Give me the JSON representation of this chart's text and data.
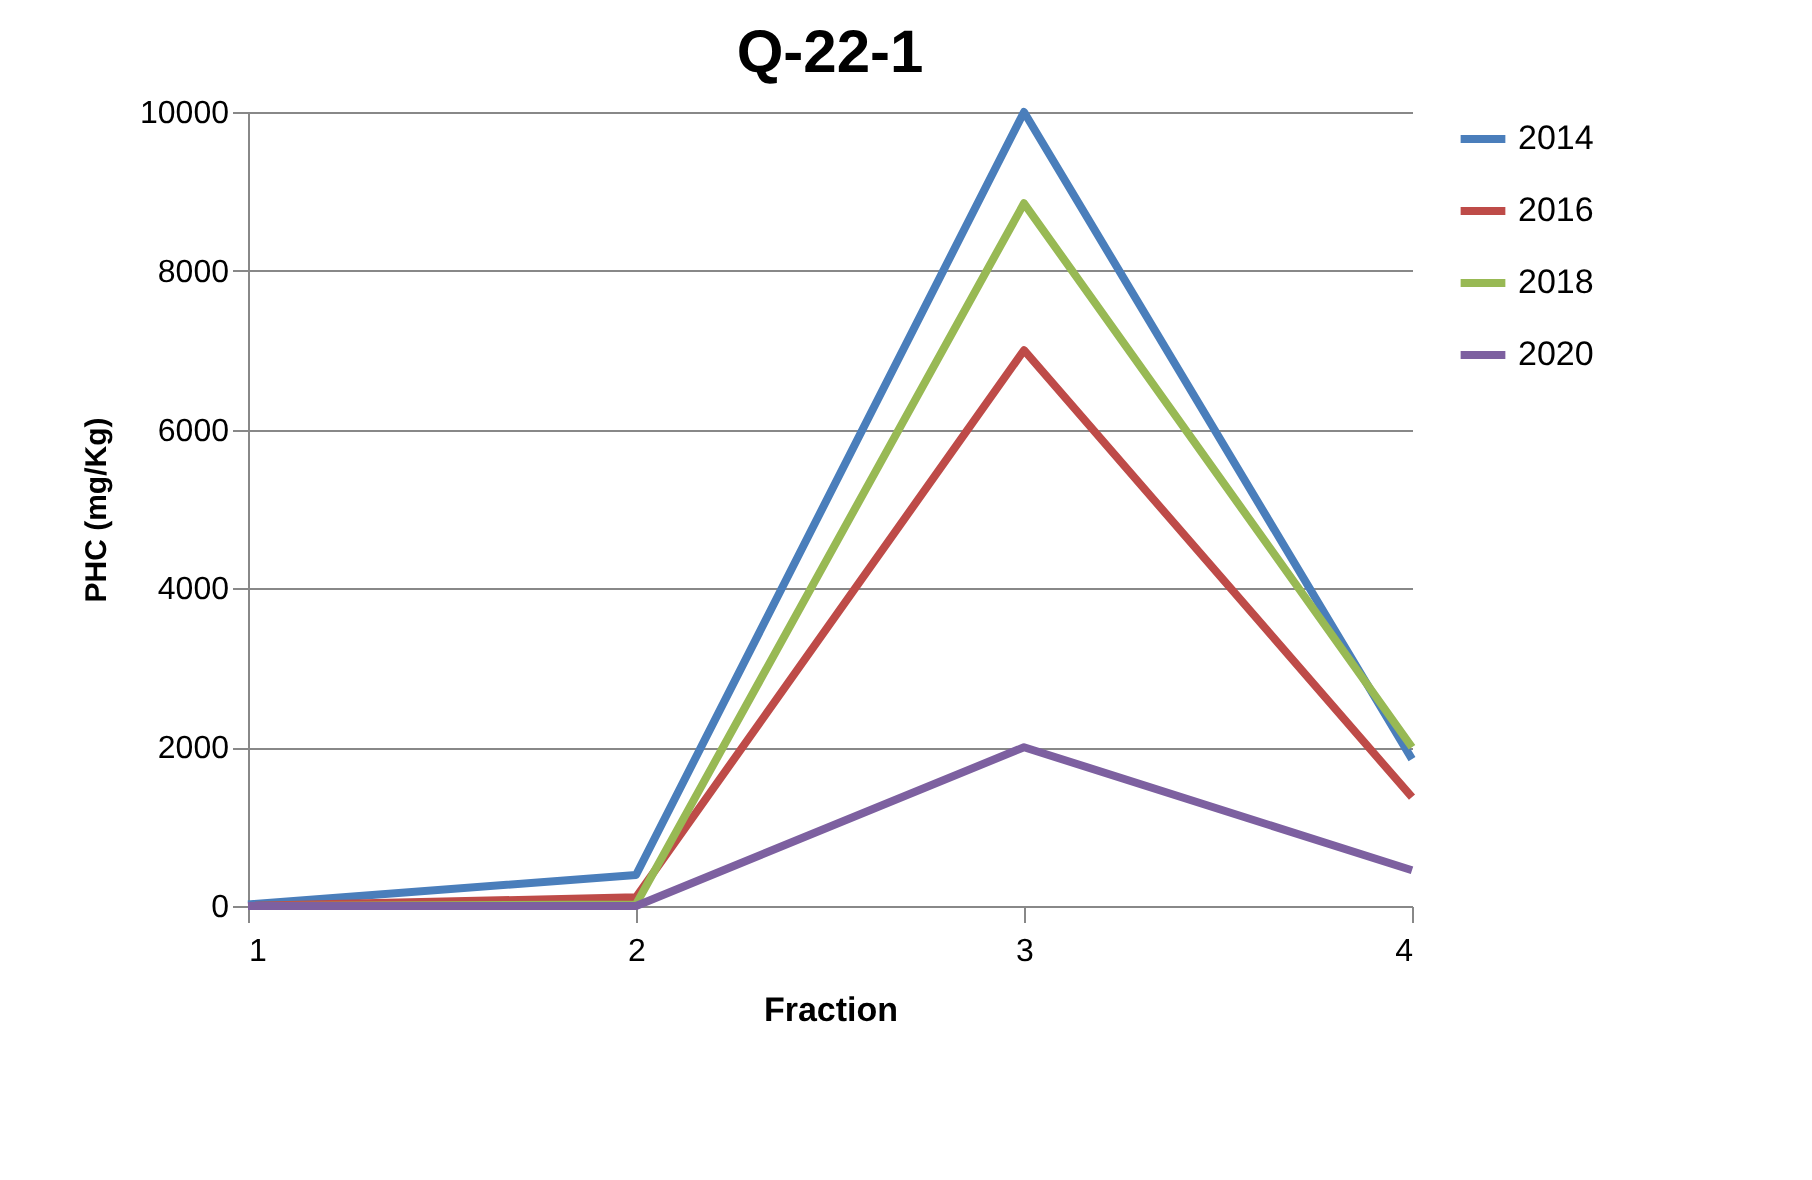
{
  "chart_data": {
    "type": "line",
    "title": "Q-22-1",
    "xlabel": "Fraction",
    "ylabel": "PHC (mg/Kg)",
    "x": [
      1,
      2,
      3,
      4
    ],
    "xlim": [
      1,
      4
    ],
    "xticks": [
      1,
      2,
      3,
      4
    ],
    "ylim": [
      0,
      10000
    ],
    "yticks": [
      0,
      2000,
      4000,
      6000,
      8000,
      10000
    ],
    "grid": "y",
    "legend": "right",
    "marker": "none",
    "line_style": "solid",
    "series": [
      {
        "name": "2014",
        "color": "#4a7ebb",
        "values": [
          20,
          390,
          10000,
          1850
        ]
      },
      {
        "name": "2016",
        "color": "#be4b48",
        "values": [
          0,
          110,
          7000,
          1370
        ]
      },
      {
        "name": "2018",
        "color": "#98b954",
        "values": [
          0,
          20,
          8850,
          2000
        ]
      },
      {
        "name": "2020",
        "color": "#7d60a0",
        "values": [
          0,
          0,
          2000,
          450
        ]
      }
    ]
  }
}
